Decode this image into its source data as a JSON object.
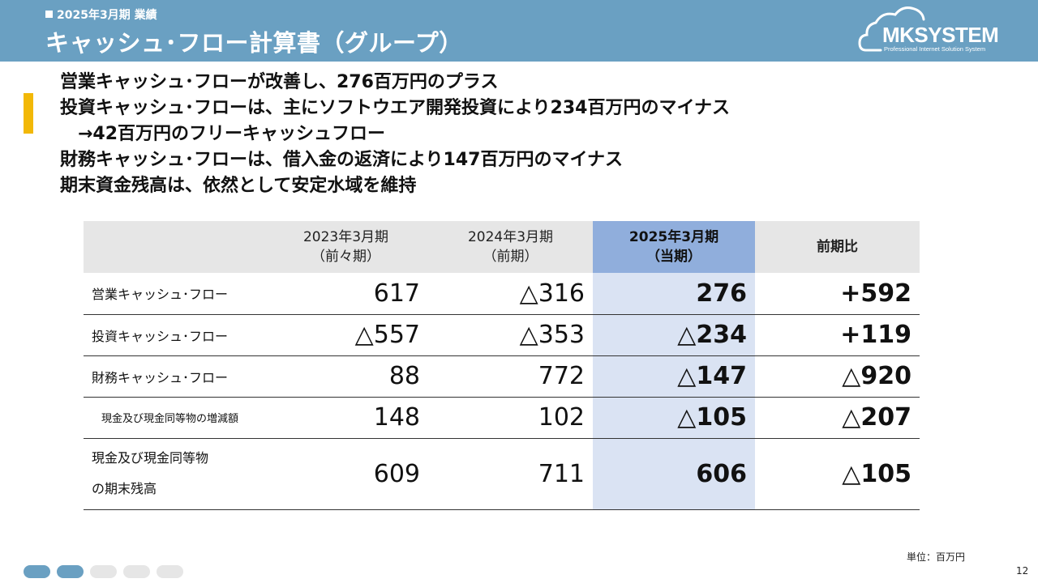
{
  "header": {
    "subtitle": "2025年3月期 業績",
    "title": "キャッシュ･フロー計算書（グループ）"
  },
  "logo": {
    "brand": "MKSYSTEM",
    "tagline": "Professional Internet Solution System"
  },
  "bullets": [
    "営業キャッシュ･フローが改善し、276百万円のプラス",
    "投資キャッシュ･フローは、主にソフトウエア開発投資により234百万円のマイナス",
    "→42百万円のフリーキャッシュフロー",
    "財務キャッシュ･フローは、借入金の返済により147百万円のマイナス",
    "期末資金残高は、依然として安定水域を維持"
  ],
  "table": {
    "headers": [
      {
        "line1": "",
        "line2": ""
      },
      {
        "line1": "2023年3月期",
        "line2": "（前々期）"
      },
      {
        "line1": "2024年3月期",
        "line2": "（前期）"
      },
      {
        "line1": "2025年3月期",
        "line2": "（当期）"
      },
      {
        "line1": "前期比",
        "line2": ""
      }
    ],
    "rows": [
      {
        "label": "営業キャッシュ･フロー",
        "values": [
          "617",
          "△316",
          "276",
          "+592"
        ]
      },
      {
        "label": "投資キャッシュ･フロー",
        "values": [
          "△557",
          "△353",
          "△234",
          "+119"
        ]
      },
      {
        "label": "財務キャッシュ･フロー",
        "values": [
          "88",
          "772",
          "△147",
          "△920"
        ]
      },
      {
        "label": "現金及び現金同等物の増減額",
        "values": [
          "148",
          "102",
          "△105",
          "△207"
        ]
      },
      {
        "label": "現金及び現金同等物",
        "label2": "の期末残高",
        "values": [
          "609",
          "711",
          "606",
          "△105"
        ]
      }
    ]
  },
  "footer": {
    "unit": "単位：百万円",
    "page": "12"
  },
  "progress": {
    "total": 5,
    "active": [
      0,
      1
    ]
  },
  "colors": {
    "header_bg": "#6aa0c2",
    "accent": "#f2b807",
    "current_header": "#90aedc",
    "current_cell": "#dae3f3"
  }
}
